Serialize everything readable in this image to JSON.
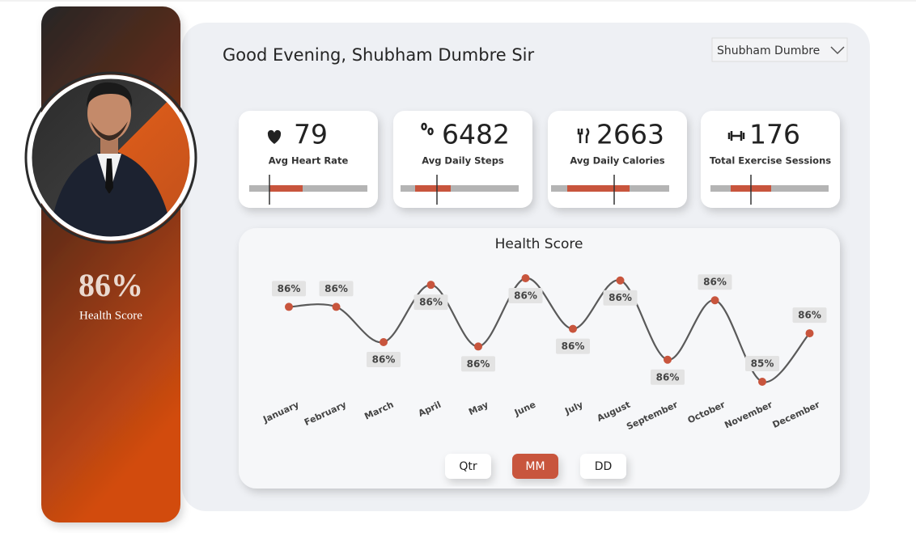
{
  "profile": {
    "score": "86%",
    "score_label": "Health Score"
  },
  "header": {
    "greeting": "Good Evening, Shubham Dumbre Sir",
    "user_select": "Shubham Dumbre"
  },
  "kpis": [
    {
      "value": 79,
      "label": "Avg Heart Rate"
    },
    {
      "value": 6482,
      "label": "Avg Daily Steps"
    },
    {
      "value": 2663,
      "label": "Avg Daily Calories"
    },
    {
      "value": 176,
      "label": "Total Exercise Sessions"
    }
  ],
  "chart_data": {
    "type": "line",
    "title": "Health Score",
    "categories": [
      "January",
      "February",
      "March",
      "April",
      "May",
      "June",
      "July",
      "August",
      "September",
      "October",
      "November",
      "December"
    ],
    "values": [
      85.74,
      85.74,
      85.58,
      85.84,
      85.56,
      85.87,
      85.64,
      85.86,
      85.5,
      85.77,
      85.4,
      85.62
    ],
    "value_labels": [
      "86%",
      "86%",
      "86%",
      "86%",
      "86%",
      "86%",
      "86%",
      "86%",
      "86%",
      "86%",
      "85%",
      "86%"
    ],
    "color": "#5a5a5a",
    "marker_color": "#c8553d",
    "ylim": [
      85.4,
      85.87
    ]
  },
  "buttons": [
    "Qtr",
    "MM",
    "DD"
  ]
}
